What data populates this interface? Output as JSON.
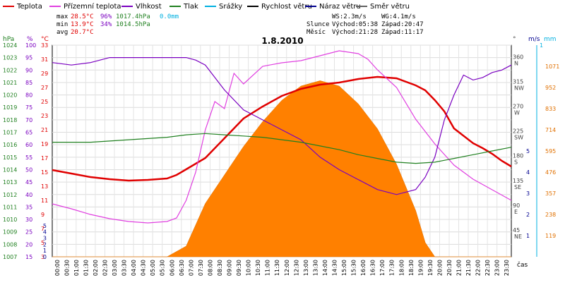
{
  "chart_data": {
    "type": "line",
    "title": "1.8.2010",
    "legend": [
      {
        "name": "Teplota",
        "color": "#e00000"
      },
      {
        "name": "Přízemní teplota",
        "color": "#e040e0"
      },
      {
        "name": "Vlhkost",
        "color": "#7a00c0"
      },
      {
        "name": "Tlak",
        "color": "#208020"
      },
      {
        "name": "Srážky",
        "color": "#00b0e0"
      },
      {
        "name": "Rychlost větru",
        "color": "#000000"
      },
      {
        "name": "Náraz větru",
        "color": "#000090"
      },
      {
        "name": "Směr větru",
        "color": "#606060"
      }
    ],
    "stats": {
      "max_label": "max",
      "min_label": "min",
      "avg_label": "avg",
      "max_temp": "28.5°C",
      "min_temp": "13.9°C",
      "avg_temp": "20.7°C",
      "max_hum": "96%",
      "min_hum": "34%",
      "max_press": "1017.4hPa",
      "min_press": "1014.5hPa",
      "rain": "0.0mm"
    },
    "wind_info": {
      "ws": "WS:2.3m/s",
      "wg": "WG:4.1m/s",
      "slunce_label": "Slunce",
      "slunce_vychod": "Východ:05:38",
      "slunce_zapad": "Západ:20:47",
      "mesic_label": "Měsíc",
      "mesic_vychod": "Východ:21:28",
      "mesic_zapad": "Západ:11:17"
    },
    "axes": {
      "hpa_label": "hPa",
      "pct_label": "%",
      "degc_label": "°C",
      "deg_label": "°",
      "ms_label": "m/s",
      "mm_label": "mm",
      "x_label": "čas",
      "hpa_ticks": [
        "1024",
        "1023",
        "1022",
        "1021",
        "1020",
        "1019",
        "1018",
        "1017",
        "1016",
        "1015",
        "1014",
        "1013",
        "1012",
        "1011",
        "1010",
        "1009",
        "1008",
        "1007"
      ],
      "pct_ticks": [
        "100",
        "95",
        "90",
        "85",
        "80",
        "75",
        "70",
        "65",
        "60",
        "55",
        "50",
        "45",
        "40",
        "35",
        "30",
        "25",
        "20",
        "15"
      ],
      "degc_ticks": [
        "33",
        "31",
        "29",
        "27",
        "25",
        "23",
        "21",
        "19",
        "17",
        "15",
        "13",
        "11",
        "9",
        "7",
        "5",
        "3"
      ],
      "dir_ticks": [
        {
          "v": "360",
          "d": "N"
        },
        {
          "v": "315",
          "d": "NW"
        },
        {
          "v": "270",
          "d": "W"
        },
        {
          "v": "225",
          "d": "SW"
        },
        {
          "v": "180",
          "d": "S"
        },
        {
          "v": "135",
          "d": "SE"
        },
        {
          "v": "90",
          "d": "E"
        },
        {
          "v": "45",
          "d": "NE"
        }
      ],
      "ms_ticks": [
        "5",
        "4",
        "3",
        "2",
        "1"
      ],
      "mm_ticks": [
        "1"
      ],
      "left_speed_ticks": [
        "5",
        "4",
        "3",
        "2",
        "1",
        "0"
      ],
      "solar_ticks": [
        "1071",
        "952",
        "833",
        "714",
        "595",
        "476",
        "357",
        "238",
        "119"
      ],
      "x_ticks": [
        "00:00",
        "00:30",
        "01:00",
        "01:30",
        "02:00",
        "02:30",
        "03:00",
        "03:30",
        "04:00",
        "04:30",
        "05:00",
        "05:30",
        "06:00",
        "06:30",
        "07:00",
        "07:30",
        "08:00",
        "08:30",
        "09:00",
        "09:30",
        "10:00",
        "10:30",
        "11:00",
        "11:30",
        "12:00",
        "12:30",
        "13:00",
        "13:30",
        "14:00",
        "14:30",
        "15:00",
        "15:30",
        "16:00",
        "16:30",
        "17:00",
        "17:30",
        "18:00",
        "18:30",
        "19:00",
        "19:30",
        "20:00",
        "20:30",
        "21:00",
        "21:30",
        "22:00",
        "22:30",
        "23:00",
        "23:30"
      ]
    },
    "ranges": {
      "x_hours": [
        0,
        24
      ],
      "temp_c": [
        3,
        33
      ],
      "humidity_pct": [
        15,
        100
      ],
      "pressure_hpa": [
        1007,
        1024
      ],
      "wind_ms": [
        0,
        5
      ],
      "solar_wm2": [
        0,
        1190
      ],
      "direction_deg": [
        0,
        360
      ]
    },
    "series": [
      {
        "name": "Teplota",
        "color": "#e00000",
        "x": [
          0,
          1,
          2,
          3,
          4,
          5,
          6,
          6.5,
          7,
          8,
          9,
          10,
          11,
          12,
          13,
          14,
          15,
          16,
          17,
          18,
          19,
          19.5,
          20,
          20.5,
          21,
          22,
          22.5,
          23,
          23.5,
          24
        ],
        "y": [
          15.3,
          14.8,
          14.3,
          14.0,
          13.8,
          13.9,
          14.1,
          14.6,
          15.4,
          17.0,
          19.8,
          22.6,
          24.3,
          25.8,
          26.8,
          27.4,
          27.7,
          28.2,
          28.5,
          28.3,
          27.3,
          26.6,
          25.2,
          23.6,
          21.2,
          19.1,
          18.4,
          17.6,
          16.6,
          15.8
        ]
      },
      {
        "name": "Přízemní teplota",
        "color": "#e040e0",
        "x": [
          0,
          1,
          2,
          3,
          4,
          5,
          6,
          6.5,
          7,
          7.5,
          8,
          8.5,
          9,
          9.5,
          10,
          11,
          12,
          13,
          14,
          15,
          16,
          16.5,
          17,
          18,
          19,
          20,
          21,
          22,
          23,
          24
        ],
        "y": [
          10.5,
          9.8,
          9.0,
          8.4,
          8.0,
          7.8,
          8.0,
          8.5,
          11.0,
          15.0,
          21.0,
          25.0,
          24.0,
          29.0,
          27.5,
          30.0,
          30.5,
          30.8,
          31.5,
          32.2,
          31.8,
          31.0,
          29.5,
          27.0,
          22.5,
          19.0,
          16.0,
          14.0,
          12.5,
          11.0
        ]
      },
      {
        "name": "Vlhkost",
        "color": "#7a00c0",
        "x": [
          0,
          1,
          2,
          3,
          4,
          5,
          6,
          7,
          7.5,
          8,
          9,
          10,
          11,
          12,
          13,
          14,
          15,
          16,
          17,
          18,
          19,
          19.5,
          20,
          20.5,
          21,
          21.5,
          22,
          22.5,
          23,
          23.5,
          24
        ],
        "y": [
          93,
          92,
          93,
          95,
          95,
          95,
          95,
          95,
          94,
          92,
          82,
          74,
          70,
          66,
          62,
          55,
          50,
          46,
          42,
          40,
          42,
          47,
          55,
          70,
          80,
          88,
          86,
          87,
          89,
          90,
          92
        ]
      },
      {
        "name": "Tlak",
        "color": "#208020",
        "x": [
          0,
          1,
          2,
          3,
          4,
          5,
          6,
          7,
          8,
          9,
          10,
          11,
          12,
          13,
          14,
          15,
          16,
          17,
          18,
          19,
          20,
          21,
          22,
          23,
          24
        ],
        "y": [
          1016.2,
          1016.2,
          1016.2,
          1016.3,
          1016.4,
          1016.5,
          1016.6,
          1016.8,
          1016.9,
          1016.8,
          1016.7,
          1016.6,
          1016.4,
          1016.2,
          1015.9,
          1015.6,
          1015.2,
          1014.9,
          1014.6,
          1014.5,
          1014.6,
          1014.9,
          1015.2,
          1015.5,
          1015.8
        ]
      },
      {
        "name": "Solar",
        "color": "#ff8000",
        "x": [
          0,
          6,
          7,
          8,
          9,
          10,
          11,
          12,
          13,
          14,
          15,
          16,
          17,
          18,
          19,
          19.5,
          20,
          24
        ],
        "y": [
          0,
          0,
          60,
          300,
          460,
          620,
          760,
          880,
          960,
          990,
          960,
          860,
          720,
          520,
          260,
          80,
          0,
          0
        ]
      }
    ]
  }
}
